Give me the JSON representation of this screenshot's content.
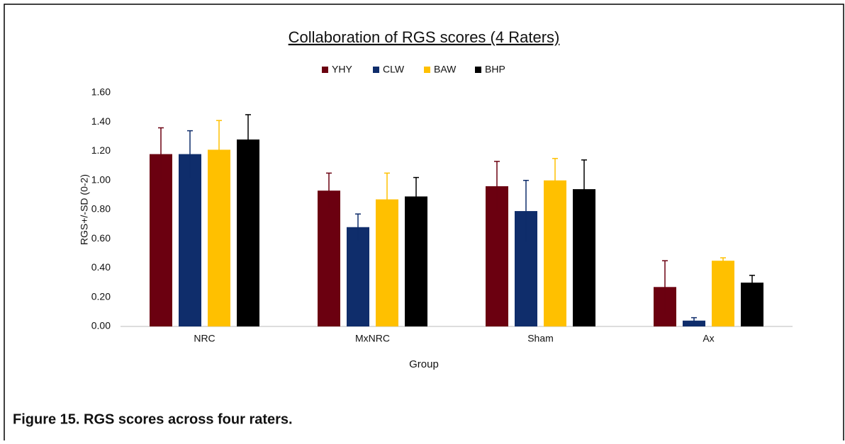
{
  "chart_data": {
    "type": "bar",
    "title": "Collaboration of RGS scores (4 Raters)",
    "x_label": "Group",
    "y_label": "RGS+/-SD (0-2)",
    "caption": "Figure 15. RGS scores across four raters.",
    "categories": [
      "NRC",
      "MxNRC",
      "Sham",
      "Ax"
    ],
    "series": [
      {
        "name": "YHY",
        "color": "#6b0010",
        "values": [
          1.18,
          0.93,
          0.96,
          0.27
        ],
        "errors": [
          0.18,
          0.12,
          0.17,
          0.18
        ]
      },
      {
        "name": "CLW",
        "color": "#0f2d6b",
        "values": [
          1.18,
          0.68,
          0.79,
          0.04
        ],
        "errors": [
          0.16,
          0.09,
          0.21,
          0.02
        ]
      },
      {
        "name": "BAW",
        "color": "#ffc000",
        "values": [
          1.21,
          0.87,
          1.0,
          0.45
        ],
        "errors": [
          0.2,
          0.18,
          0.15,
          0.02
        ]
      },
      {
        "name": "BHP",
        "color": "#000000",
        "values": [
          1.28,
          0.89,
          0.94,
          0.3
        ],
        "errors": [
          0.17,
          0.13,
          0.2,
          0.05
        ]
      }
    ],
    "ylim": [
      0,
      1.6
    ],
    "yticks": [
      {
        "value": 0,
        "label": "0.00"
      },
      {
        "value": 0.2,
        "label": "0.20"
      },
      {
        "value": 0.4,
        "label": "0.40"
      },
      {
        "value": 0.6,
        "label": "0.60"
      },
      {
        "value": 0.8,
        "label": "0.80"
      },
      {
        "value": 1.0,
        "label": "1.00"
      },
      {
        "value": 1.2,
        "label": "1.20"
      },
      {
        "value": 1.4,
        "label": "1.40"
      },
      {
        "value": 1.6,
        "label": "1.60"
      }
    ],
    "grid": false,
    "legend": "top"
  }
}
